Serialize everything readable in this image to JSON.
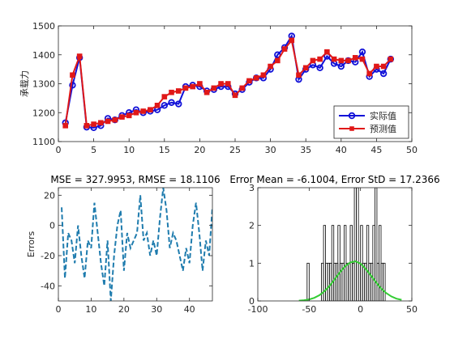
{
  "chart_data": [
    {
      "type": "line",
      "ylabel": "承载力",
      "x": [
        1,
        2,
        3,
        4,
        5,
        6,
        7,
        8,
        9,
        10,
        11,
        12,
        13,
        14,
        15,
        16,
        17,
        18,
        19,
        20,
        21,
        22,
        23,
        24,
        25,
        26,
        27,
        28,
        29,
        30,
        31,
        32,
        33,
        34,
        35,
        36,
        37,
        38,
        39,
        40,
        41,
        42,
        43,
        44,
        45,
        46,
        47
      ],
      "series": [
        {
          "name": "实际值",
          "color": "#1010d8",
          "marker": "circle",
          "values": [
            1165,
            1295,
            1390,
            1150,
            1148,
            1155,
            1180,
            1175,
            1190,
            1200,
            1210,
            1200,
            1205,
            1210,
            1225,
            1235,
            1230,
            1290,
            1295,
            1290,
            1275,
            1280,
            1290,
            1290,
            1265,
            1280,
            1305,
            1320,
            1320,
            1350,
            1400,
            1425,
            1465,
            1315,
            1350,
            1365,
            1355,
            1395,
            1370,
            1360,
            1380,
            1375,
            1410,
            1325,
            1350,
            1335,
            1385
          ]
        },
        {
          "name": "预测值",
          "color": "#e01818",
          "marker": "square",
          "values": [
            1155,
            1330,
            1395,
            1155,
            1160,
            1165,
            1170,
            1175,
            1185,
            1190,
            1200,
            1205,
            1210,
            1225,
            1255,
            1270,
            1275,
            1285,
            1290,
            1300,
            1270,
            1285,
            1300,
            1300,
            1260,
            1285,
            1310,
            1320,
            1330,
            1360,
            1380,
            1420,
            1450,
            1330,
            1355,
            1380,
            1385,
            1410,
            1385,
            1380,
            1380,
            1390,
            1385,
            1335,
            1360,
            1360,
            1385
          ]
        }
      ],
      "xlim": [
        0,
        50
      ],
      "xticks": [
        0,
        5,
        10,
        15,
        20,
        25,
        30,
        35,
        40,
        45,
        50
      ],
      "ylim": [
        1100,
        1500
      ],
      "yticks": [
        1100,
        1200,
        1300,
        1400,
        1500
      ],
      "legend": "lower right"
    },
    {
      "type": "line",
      "title": "MSE = 327.9953, RMSE = 18.1106",
      "ylabel": "Errors",
      "x": [
        1,
        2,
        3,
        4,
        5,
        6,
        7,
        8,
        9,
        10,
        11,
        12,
        13,
        14,
        15,
        16,
        17,
        18,
        19,
        20,
        21,
        22,
        23,
        24,
        25,
        26,
        27,
        28,
        29,
        30,
        31,
        32,
        33,
        34,
        35,
        36,
        37,
        38,
        39,
        40,
        41,
        42,
        43,
        44,
        45,
        46,
        47
      ],
      "series": [
        {
          "color": "#1f7cae",
          "linestyle": "dashed",
          "values": [
            12,
            -35,
            -5,
            -10,
            -25,
            0,
            -20,
            -35,
            -10,
            -15,
            15,
            -5,
            -25,
            -40,
            -10,
            -50,
            -20,
            0,
            10,
            -30,
            -5,
            -15,
            -10,
            -5,
            20,
            -10,
            -5,
            -20,
            -10,
            -20,
            5,
            25,
            10,
            -15,
            -5,
            -10,
            -20,
            -30,
            -15,
            -25,
            0,
            15,
            -5,
            -30,
            -10,
            -20,
            12
          ]
        }
      ],
      "xlim": [
        0,
        47
      ],
      "xticks": [
        0,
        10,
        20,
        30,
        40
      ],
      "ylim": [
        -50,
        25
      ],
      "yticks": [
        -40,
        -20,
        0,
        20
      ]
    },
    {
      "type": "histogram",
      "title": "Error Mean = -6.1004, Error StD = 17.2366",
      "bins": [
        -52,
        -50,
        -48,
        -46,
        -44,
        -42,
        -40,
        -38,
        -36,
        -34,
        -32,
        -30,
        -28,
        -26,
        -24,
        -22,
        -20,
        -18,
        -16,
        -14,
        -12,
        -10,
        -8,
        -6,
        -4,
        -2,
        0,
        2,
        4,
        6,
        8,
        10,
        12,
        14,
        16,
        18,
        20,
        22,
        24
      ],
      "counts": [
        1,
        0,
        0,
        0,
        0,
        0,
        0,
        1,
        2,
        1,
        1,
        1,
        2,
        1,
        1,
        2,
        1,
        1,
        2,
        1,
        1,
        2,
        1,
        3,
        3,
        1,
        2,
        1,
        1,
        2,
        1,
        1,
        2,
        3,
        1,
        2,
        1,
        1
      ],
      "color": "#000000",
      "curve": {
        "color": "#33cc33",
        "x": [
          -60,
          -55,
          -50,
          -45,
          -40,
          -35,
          -30,
          -25,
          -20,
          -15,
          -10,
          -5,
          0,
          5,
          10,
          15,
          20,
          25,
          30,
          35,
          40
        ],
        "values": [
          0.008,
          0.019,
          0.041,
          0.082,
          0.152,
          0.26,
          0.4,
          0.58,
          0.76,
          0.92,
          1.02,
          1.05,
          0.99,
          0.85,
          0.68,
          0.5,
          0.33,
          0.21,
          0.12,
          0.06,
          0.03
        ]
      },
      "xlim": [
        -100,
        50
      ],
      "xticks": [
        -100,
        -50,
        0,
        50
      ],
      "ylim": [
        0,
        3
      ],
      "yticks": [
        0,
        1,
        2,
        3
      ]
    }
  ]
}
